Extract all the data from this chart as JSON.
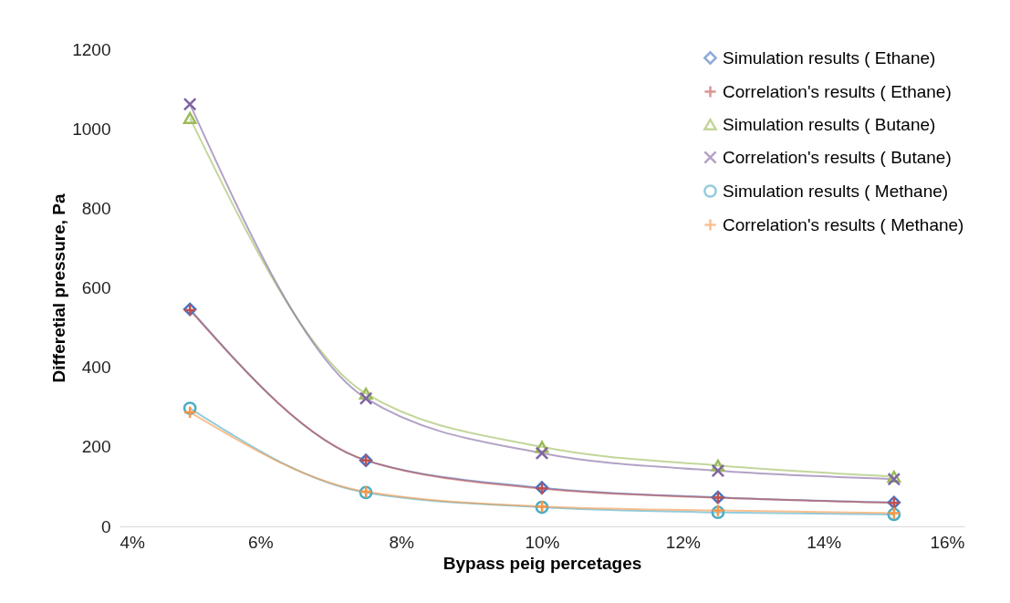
{
  "chart_data": {
    "type": "line",
    "xlabel": "Bypass peig percetages",
    "ylabel": "Differetial pressure, Pa",
    "x": [
      5,
      7.5,
      10,
      12.5,
      15
    ],
    "series": [
      {
        "name": "Simulation results ( Ethane)",
        "color": "#4472c4",
        "marker": "diamond",
        "values": [
          546,
          166,
          97,
          73,
          60
        ]
      },
      {
        "name": "Correlation's results ( Ethane)",
        "color": "#c0504d",
        "marker": "cross",
        "values": [
          544,
          166,
          95,
          72,
          59
        ]
      },
      {
        "name": "Simulation results ( Butane)",
        "color": "#9bbb59",
        "marker": "triangle",
        "values": [
          1027,
          334,
          200,
          153,
          125
        ]
      },
      {
        "name": "Correlation's results ( Butane)",
        "color": "#8064a2",
        "marker": "x",
        "values": [
          1062,
          322,
          184,
          140,
          119
        ]
      },
      {
        "name": "Simulation results ( Methane)",
        "color": "#4bacc6",
        "marker": "circle",
        "values": [
          297,
          85,
          48,
          35,
          30
        ]
      },
      {
        "name": "Correlation's results ( Methane)",
        "color": "#f79646",
        "marker": "cross",
        "values": [
          287,
          87,
          50,
          40,
          33
        ]
      }
    ],
    "xlim": [
      4,
      16
    ],
    "xticks": [
      {
        "value": 4,
        "label": "4%"
      },
      {
        "value": 6,
        "label": "6%"
      },
      {
        "value": 8,
        "label": "8%"
      },
      {
        "value": 10,
        "label": "10%"
      },
      {
        "value": 12,
        "label": "12%"
      },
      {
        "value": 14,
        "label": "14%"
      },
      {
        "value": 16,
        "label": "16%"
      }
    ],
    "ylim": [
      0,
      1200
    ],
    "yticks": [
      0,
      200,
      400,
      600,
      800,
      {
        "value": 1000,
        "label": "1000"
      },
      {
        "value": 1200,
        "label": "1200"
      }
    ],
    "grid": false,
    "legend": "top right",
    "line_style": "solid"
  }
}
